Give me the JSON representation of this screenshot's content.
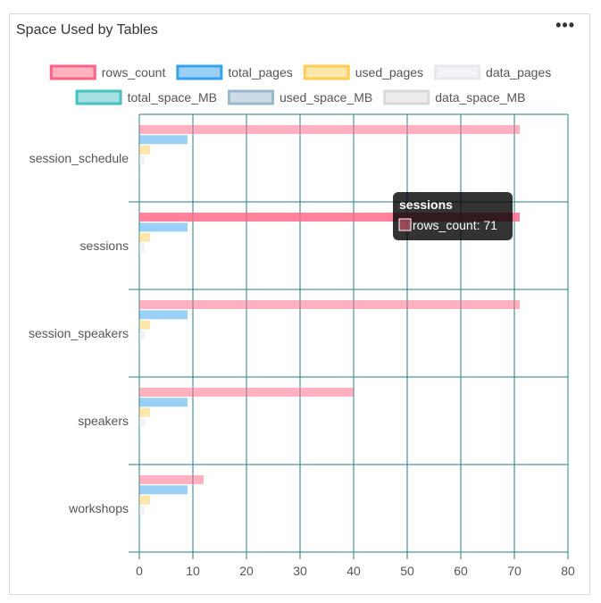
{
  "widget": {
    "title": "Space Used by Tables",
    "menu_icon": "ellipsis-icon",
    "menu_glyph": "•••"
  },
  "chart_data": {
    "type": "bar",
    "orientation": "horizontal",
    "title": "Space Used by Tables",
    "categories": [
      "session_schedule",
      "sessions",
      "session_speakers",
      "speakers",
      "workshops"
    ],
    "series": [
      {
        "name": "rows_count",
        "color": "#ff6384",
        "values": [
          71,
          71,
          71,
          40,
          12
        ]
      },
      {
        "name": "total_pages",
        "color": "#36a2eb",
        "values": [
          9,
          9,
          9,
          9,
          9
        ]
      },
      {
        "name": "used_pages",
        "color": "#ffcd56",
        "values": [
          2,
          2,
          2,
          2,
          2
        ]
      },
      {
        "name": "data_pages",
        "color": "#e6e8ed",
        "values": [
          1,
          1,
          1,
          1,
          1
        ]
      },
      {
        "name": "total_space_MB",
        "color": "#4bc0c0",
        "values": [
          0.07,
          0.07,
          0.07,
          0.07,
          0.07
        ]
      },
      {
        "name": "used_space_MB",
        "color": "#9ab8cc",
        "values": [
          0.02,
          0.02,
          0.02,
          0.02,
          0.02
        ]
      },
      {
        "name": "data_space_MB",
        "color": "#d9d9d9",
        "values": [
          0.01,
          0.01,
          0.01,
          0.01,
          0.01
        ]
      }
    ],
    "xlim": [
      0,
      80
    ],
    "xticks": [
      0,
      10,
      20,
      30,
      40,
      50,
      60,
      70,
      80
    ],
    "grid": true,
    "grid_color": "#2a7f86",
    "legend_position": "top",
    "tooltip": {
      "title": "sessions",
      "category_index": 1,
      "series": "rows_count",
      "text": "rows_count: 71",
      "color": "#ff6384"
    }
  }
}
